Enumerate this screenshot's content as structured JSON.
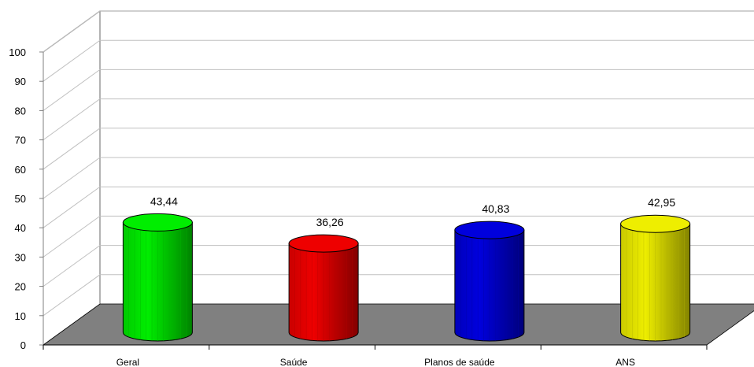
{
  "chart_data": {
    "type": "bar",
    "style": "3d-cylinder",
    "title": "",
    "xlabel": "",
    "ylabel": "",
    "ylim": [
      0,
      100
    ],
    "yticks": [
      0,
      10,
      20,
      30,
      40,
      50,
      60,
      70,
      80,
      90,
      100
    ],
    "grid": true,
    "categories": [
      "Geral",
      "Saúde",
      "Planos de saúde",
      "ANS"
    ],
    "values": [
      43.44,
      36.26,
      40.83,
      42.95
    ],
    "value_labels": [
      "43,44",
      "36,26",
      "40,83",
      "42,95"
    ],
    "colors": [
      "#00ee00",
      "#ee0000",
      "#0000dd",
      "#eeee00"
    ],
    "floor_color": "#808080"
  }
}
